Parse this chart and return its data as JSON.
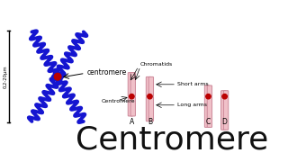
{
  "bg_color": "#ffffff",
  "title_text": "Centromere",
  "title_color": "#111111",
  "title_fontsize": 26,
  "centromere_label": "centromere",
  "scale_label": "0,2-20μm",
  "chromatids_label": "Chromatids",
  "centromere_ann_label": "Centromere",
  "short_arms_label": "Short arms",
  "long_arms_label": "Long arms",
  "chrom_labels": [
    "A",
    "B",
    "C",
    "D"
  ],
  "blue_color": "#1515d0",
  "red_color": "#bb0000",
  "pink_fill": "#f0c0c8",
  "pink_outline": "#cc8899"
}
